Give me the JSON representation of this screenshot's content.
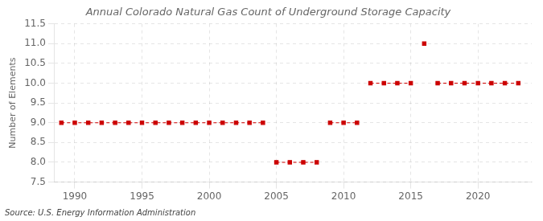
{
  "chart_data": {
    "type": "line",
    "title": "Annual Colorado Natural Gas Count of Underground Storage Capacity",
    "y_label": "Number of Elements",
    "source": "Source: U.S. Energy Information Administration",
    "x": [
      1989,
      1990,
      1991,
      1992,
      1993,
      1994,
      1995,
      1996,
      1997,
      1998,
      1999,
      2000,
      2001,
      2002,
      2003,
      2004,
      2005,
      2006,
      2007,
      2008,
      2009,
      2010,
      2011,
      2012,
      2013,
      2014,
      2015,
      2016,
      2017,
      2018,
      2019,
      2020,
      2021,
      2022,
      2023
    ],
    "values": [
      9,
      9,
      9,
      9,
      9,
      9,
      9,
      9,
      9,
      9,
      9,
      9,
      9,
      9,
      9,
      9,
      8,
      8,
      8,
      8,
      9,
      9,
      9,
      10,
      10,
      10,
      10,
      11,
      10,
      10,
      10,
      10,
      10,
      10,
      10
    ],
    "color": "#cc0000",
    "marker": "square",
    "line_style": "dashed",
    "xlim": [
      1988.5,
      2024
    ],
    "xticks": [
      1990,
      1995,
      2000,
      2005,
      2010,
      2015,
      2020
    ],
    "ylim": [
      7.5,
      11.5
    ],
    "yticks": [
      7.5,
      {
        "value": 8.0,
        "label": "8.0"
      },
      8.5,
      {
        "value": 9.0,
        "label": "9.0"
      },
      9.5,
      {
        "value": 10.0,
        "label": "10.0"
      },
      10.5,
      {
        "value": 11.0,
        "label": "11.0"
      },
      11.5
    ],
    "grid": true
  }
}
